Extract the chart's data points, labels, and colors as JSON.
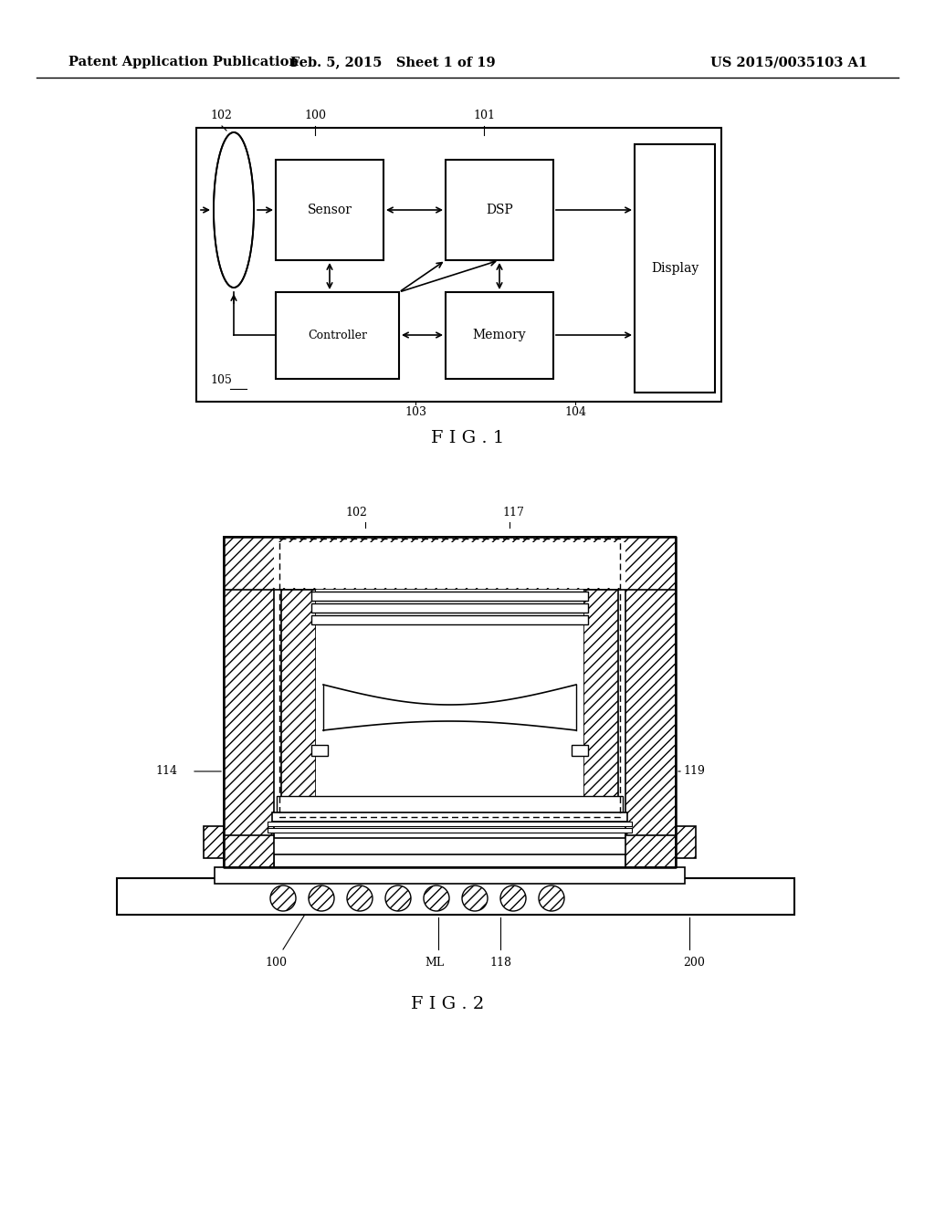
{
  "bg_color": "#ffffff",
  "header_left": "Patent Application Publication",
  "header_mid": "Feb. 5, 2015   Sheet 1 of 19",
  "header_right": "US 2015/0035103 A1",
  "fig1_label": "F I G . 1",
  "fig2_label": "F I G . 2"
}
